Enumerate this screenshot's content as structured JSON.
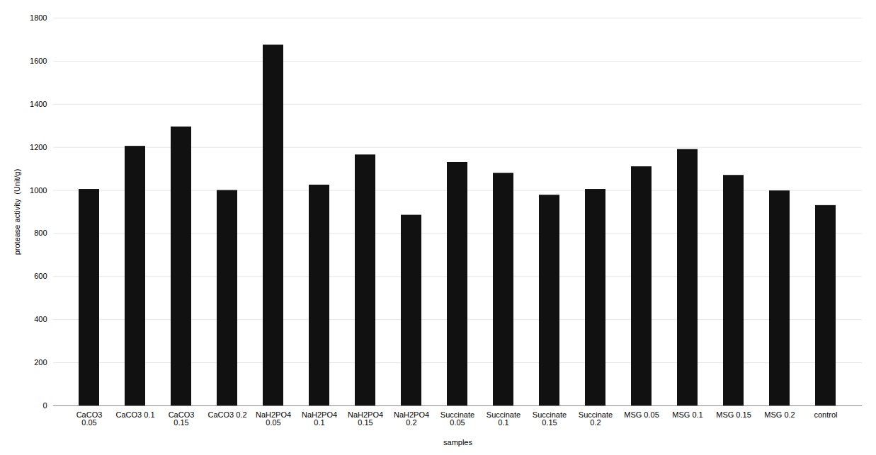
{
  "chart_data": {
    "type": "bar",
    "categories": [
      "CaCO3\n0.05",
      "CaCO3 0.1",
      "CaCO3\n0.15",
      "CaCO3 0.2",
      "NaH2PO4\n0.05",
      "NaH2PO4\n0.1",
      "NaH2PO4\n0.15",
      "NaH2PO4\n0.2",
      "Succinate\n0.05",
      "Succinate\n0.1",
      "Succinate\n0.15",
      "Succinate\n0.2",
      "MSG 0.05",
      "MSG 0.1",
      "MSG 0.15",
      "MSG 0.2",
      "control"
    ],
    "values": [
      1005,
      1205,
      1295,
      1000,
      1675,
      1025,
      1165,
      885,
      1130,
      1080,
      978,
      1005,
      1110,
      1190,
      1070,
      998,
      930
    ],
    "color": "#111111",
    "xlabel": "samples",
    "ylabel": "protease activity  (Unit/g)",
    "ylim": [
      0,
      1800
    ],
    "yticks": [
      0,
      200,
      400,
      600,
      800,
      1000,
      1200,
      1400,
      1600,
      1800
    ],
    "grid": true
  }
}
